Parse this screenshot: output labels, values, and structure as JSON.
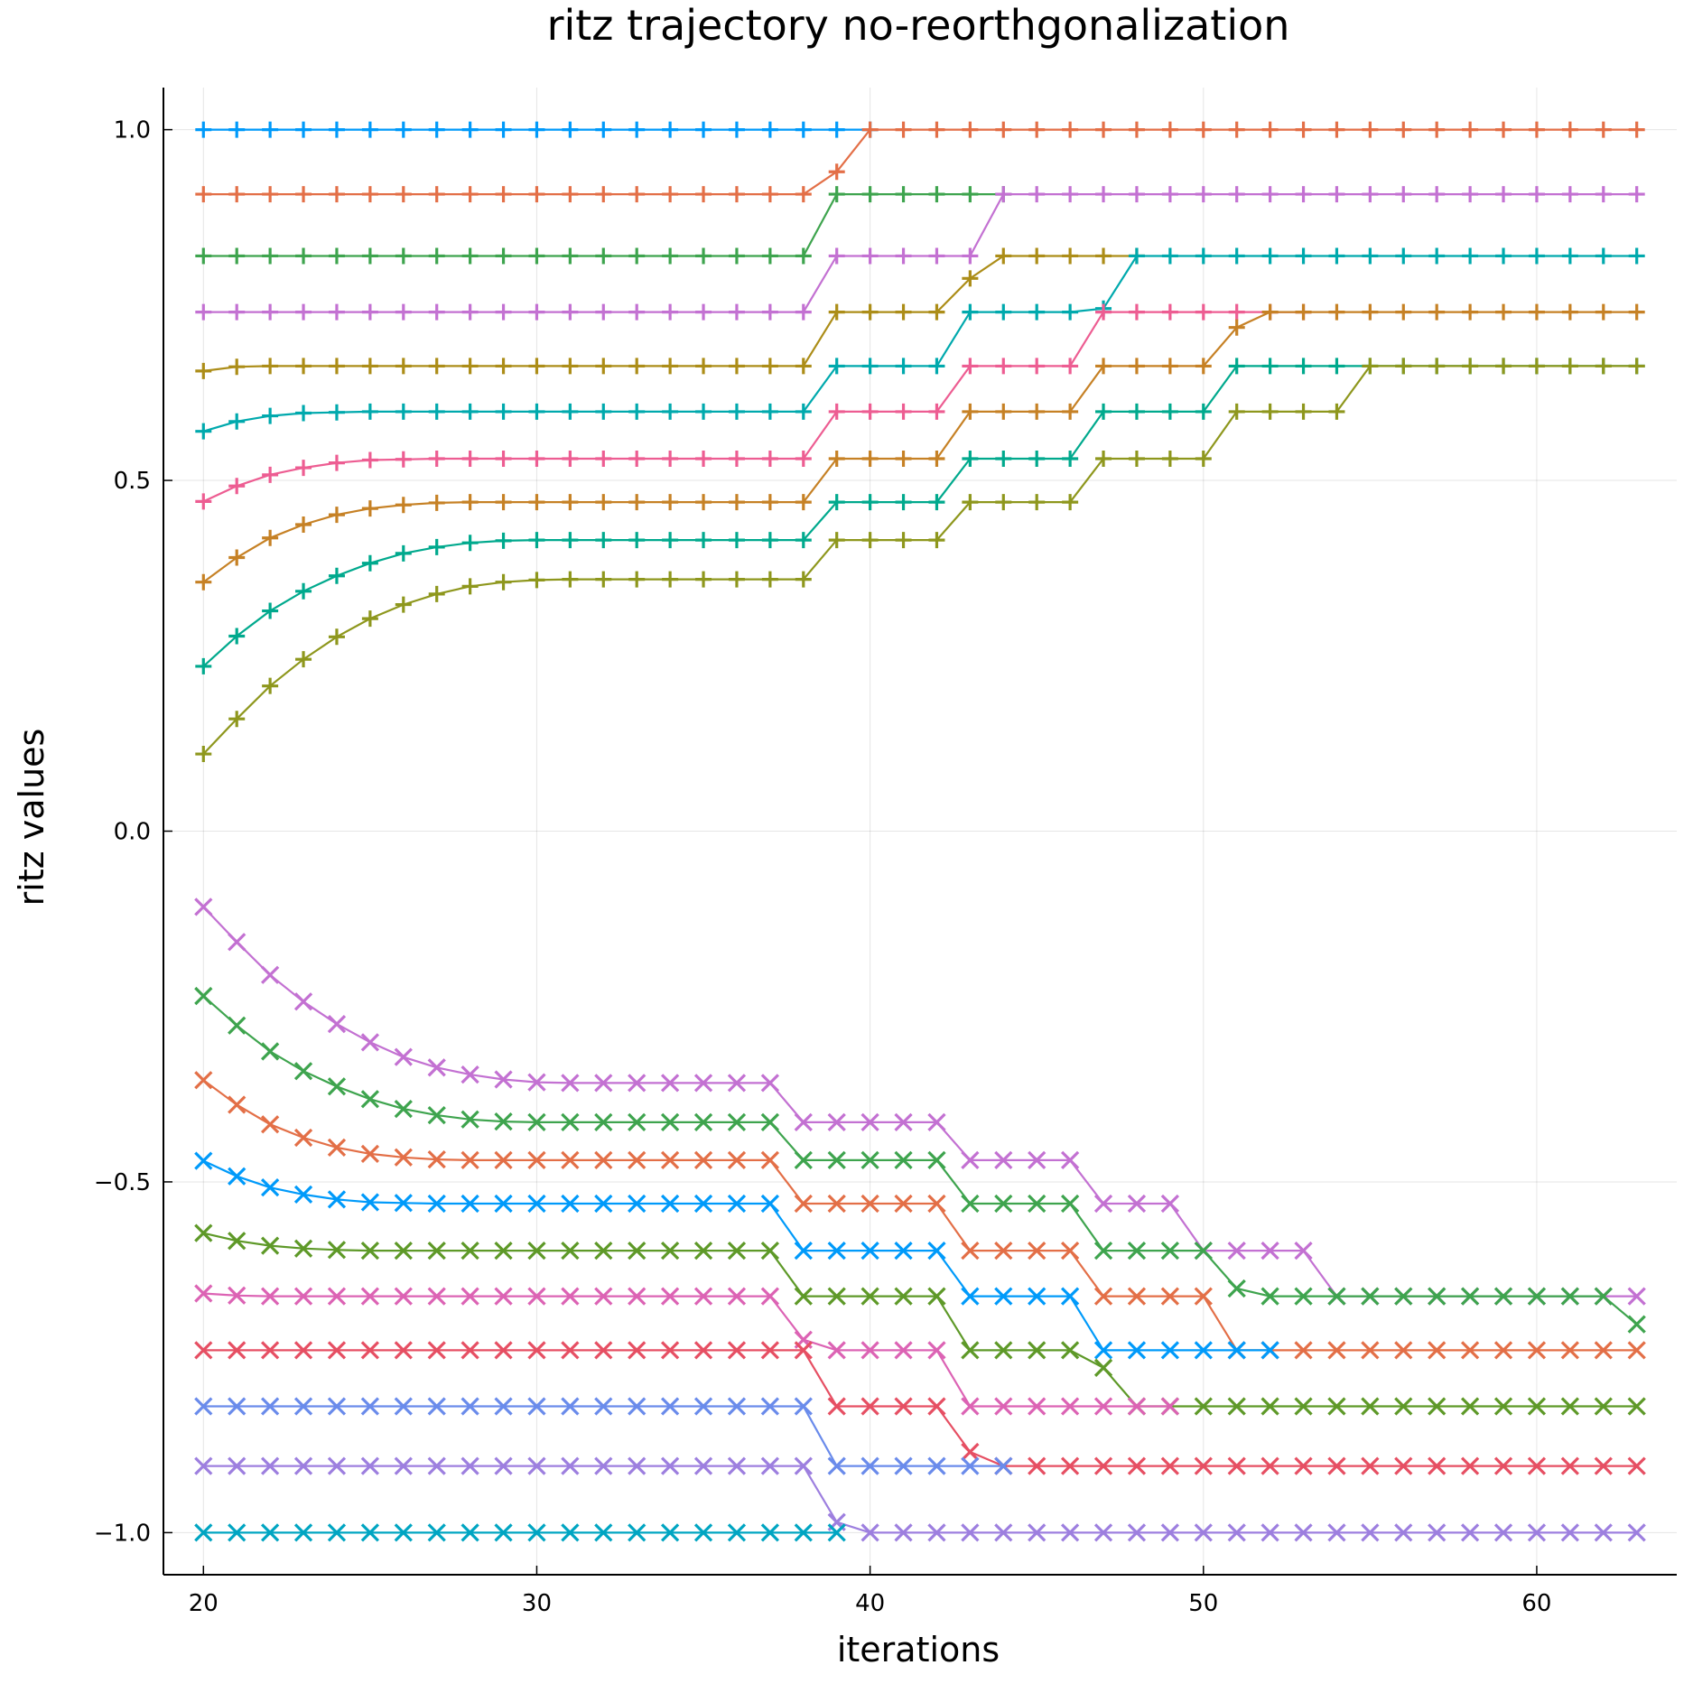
{
  "chart_data": {
    "type": "line",
    "title": "ritz trajectory no-reorthgonalization",
    "xlabel": "iterations",
    "ylabel": "ritz values",
    "xlim": [
      18.8,
      64.2
    ],
    "ylim": [
      -1.06,
      1.06
    ],
    "xticks": [
      20,
      30,
      40,
      50,
      60
    ],
    "xtick_labels": [
      "20",
      "30",
      "40",
      "50",
      "60"
    ],
    "yticks": [
      -1.0,
      -0.5,
      0.0,
      0.5,
      1.0
    ],
    "ytick_labels": [
      "−1.0",
      "−0.5",
      "0.0",
      "0.5",
      "1.0"
    ],
    "grid": true,
    "legend": "none",
    "x_start": 20,
    "series": [
      {
        "color": "#009AFA",
        "marker": "plus",
        "values": [
          1.0,
          1.0,
          1.0,
          1.0,
          1.0,
          1.0,
          1.0,
          1.0,
          1.0,
          1.0,
          1.0,
          1.0,
          1.0,
          1.0,
          1.0,
          1.0,
          1.0,
          1.0,
          1.0,
          1.0,
          1.0
        ]
      },
      {
        "color": "#E36F47",
        "marker": "plus",
        "values": [
          0.908,
          0.908,
          0.908,
          0.908,
          0.908,
          0.908,
          0.908,
          0.908,
          0.908,
          0.908,
          0.908,
          0.908,
          0.908,
          0.908,
          0.908,
          0.908,
          0.908,
          0.908,
          0.908,
          0.94,
          1.0,
          1.0,
          1.0,
          1.0,
          1.0,
          1.0,
          1.0,
          1.0,
          1.0,
          1.0,
          1.0,
          1.0,
          1.0,
          1.0,
          1.0,
          1.0,
          1.0,
          1.0,
          1.0,
          1.0,
          1.0,
          1.0,
          1.0,
          1.0
        ]
      },
      {
        "color": "#3EA44E",
        "marker": "plus",
        "values": [
          0.82,
          0.82,
          0.82,
          0.82,
          0.82,
          0.82,
          0.82,
          0.82,
          0.82,
          0.82,
          0.82,
          0.82,
          0.82,
          0.82,
          0.82,
          0.82,
          0.82,
          0.82,
          0.82,
          0.908,
          0.908,
          0.908,
          0.908,
          0.908,
          0.908
        ]
      },
      {
        "color": "#C371D2",
        "marker": "plus",
        "values": [
          0.74,
          0.74,
          0.74,
          0.74,
          0.74,
          0.74,
          0.74,
          0.74,
          0.74,
          0.74,
          0.74,
          0.74,
          0.74,
          0.74,
          0.74,
          0.74,
          0.74,
          0.74,
          0.74,
          0.82,
          0.82,
          0.82,
          0.82,
          0.82,
          0.908,
          0.908,
          0.908,
          0.908,
          0.908,
          0.908,
          0.908,
          0.908,
          0.908,
          0.908,
          0.908,
          0.908,
          0.908,
          0.908,
          0.908,
          0.908,
          0.908,
          0.908,
          0.908,
          0.908
        ]
      },
      {
        "color": "#AC8D18",
        "marker": "plus",
        "values": [
          0.656,
          0.662,
          0.663,
          0.663,
          0.663,
          0.663,
          0.663,
          0.663,
          0.663,
          0.663,
          0.663,
          0.663,
          0.663,
          0.663,
          0.663,
          0.663,
          0.663,
          0.663,
          0.663,
          0.74,
          0.74,
          0.74,
          0.74,
          0.788,
          0.82,
          0.82,
          0.82,
          0.82,
          0.82
        ]
      },
      {
        "color": "#00A9AD",
        "marker": "plus",
        "values": [
          0.57,
          0.584,
          0.592,
          0.596,
          0.597,
          0.598,
          0.598,
          0.598,
          0.598,
          0.598,
          0.598,
          0.598,
          0.598,
          0.598,
          0.598,
          0.598,
          0.598,
          0.598,
          0.598,
          0.663,
          0.663,
          0.663,
          0.663,
          0.74,
          0.74,
          0.74,
          0.74,
          0.745,
          0.82,
          0.82,
          0.82,
          0.82,
          0.82,
          0.82,
          0.82,
          0.82,
          0.82,
          0.82,
          0.82,
          0.82,
          0.82,
          0.82,
          0.82,
          0.82
        ]
      },
      {
        "color": "#ED5D92",
        "marker": "plus",
        "values": [
          0.47,
          0.492,
          0.508,
          0.518,
          0.525,
          0.529,
          0.53,
          0.531,
          0.531,
          0.531,
          0.531,
          0.531,
          0.531,
          0.531,
          0.531,
          0.531,
          0.531,
          0.531,
          0.531,
          0.598,
          0.598,
          0.598,
          0.598,
          0.663,
          0.663,
          0.663,
          0.663,
          0.74,
          0.74,
          0.74,
          0.74,
          0.74,
          0.74,
          0.74
        ]
      },
      {
        "color": "#C68125",
        "marker": "plus",
        "values": [
          0.355,
          0.39,
          0.418,
          0.437,
          0.451,
          0.46,
          0.465,
          0.468,
          0.469,
          0.469,
          0.469,
          0.469,
          0.469,
          0.469,
          0.469,
          0.469,
          0.469,
          0.469,
          0.469,
          0.531,
          0.531,
          0.531,
          0.531,
          0.598,
          0.598,
          0.598,
          0.598,
          0.663,
          0.663,
          0.663,
          0.663,
          0.718,
          0.74,
          0.74,
          0.74,
          0.74,
          0.74,
          0.74,
          0.74,
          0.74,
          0.74,
          0.74,
          0.74,
          0.74
        ]
      },
      {
        "color": "#00A98D",
        "marker": "plus",
        "values": [
          0.235,
          0.278,
          0.314,
          0.342,
          0.364,
          0.382,
          0.396,
          0.405,
          0.411,
          0.414,
          0.415,
          0.415,
          0.415,
          0.415,
          0.415,
          0.415,
          0.415,
          0.415,
          0.415,
          0.469,
          0.469,
          0.469,
          0.469,
          0.531,
          0.531,
          0.531,
          0.531,
          0.598,
          0.598,
          0.598,
          0.598,
          0.663,
          0.663,
          0.663,
          0.663,
          0.663,
          0.663,
          0.663,
          0.663,
          0.663,
          0.663,
          0.663,
          0.663,
          0.663
        ]
      },
      {
        "color": "#8E971D",
        "marker": "plus",
        "values": [
          0.11,
          0.16,
          0.207,
          0.245,
          0.277,
          0.303,
          0.323,
          0.338,
          0.349,
          0.355,
          0.358,
          0.359,
          0.359,
          0.359,
          0.359,
          0.359,
          0.359,
          0.359,
          0.359,
          0.415,
          0.415,
          0.415,
          0.415,
          0.469,
          0.469,
          0.469,
          0.469,
          0.531,
          0.531,
          0.531,
          0.531,
          0.598,
          0.598,
          0.598,
          0.598,
          0.663,
          0.663,
          0.663,
          0.663,
          0.663,
          0.663,
          0.663,
          0.663,
          0.663
        ]
      },
      {
        "color": "#C371D2",
        "marker": "cross",
        "values": [
          -0.108,
          -0.158,
          -0.205,
          -0.243,
          -0.275,
          -0.301,
          -0.322,
          -0.337,
          -0.347,
          -0.354,
          -0.358,
          -0.359,
          -0.359,
          -0.359,
          -0.359,
          -0.359,
          -0.359,
          -0.359,
          -0.415,
          -0.415,
          -0.415,
          -0.415,
          -0.415,
          -0.469,
          -0.469,
          -0.469,
          -0.469,
          -0.531,
          -0.531,
          -0.531,
          -0.598,
          -0.598,
          -0.598,
          -0.598,
          -0.663,
          -0.663,
          -0.663,
          -0.663,
          -0.663,
          -0.663,
          -0.663,
          -0.663,
          -0.663,
          -0.663
        ]
      },
      {
        "color": "#3EA44E",
        "marker": "cross",
        "values": [
          -0.235,
          -0.277,
          -0.314,
          -0.342,
          -0.364,
          -0.382,
          -0.396,
          -0.405,
          -0.411,
          -0.414,
          -0.415,
          -0.415,
          -0.415,
          -0.415,
          -0.415,
          -0.415,
          -0.415,
          -0.415,
          -0.469,
          -0.469,
          -0.469,
          -0.469,
          -0.469,
          -0.531,
          -0.531,
          -0.531,
          -0.531,
          -0.598,
          -0.598,
          -0.598,
          -0.598,
          -0.652,
          -0.663,
          -0.663,
          -0.663,
          -0.663,
          -0.663,
          -0.663,
          -0.663,
          -0.663,
          -0.663,
          -0.663,
          -0.663,
          -0.703
        ]
      },
      {
        "color": "#E36F47",
        "marker": "cross",
        "values": [
          -0.355,
          -0.39,
          -0.418,
          -0.437,
          -0.451,
          -0.46,
          -0.465,
          -0.468,
          -0.469,
          -0.469,
          -0.469,
          -0.469,
          -0.469,
          -0.469,
          -0.469,
          -0.469,
          -0.469,
          -0.469,
          -0.531,
          -0.531,
          -0.531,
          -0.531,
          -0.531,
          -0.598,
          -0.598,
          -0.598,
          -0.598,
          -0.663,
          -0.663,
          -0.663,
          -0.663,
          -0.74,
          -0.74,
          -0.74,
          -0.74,
          -0.74,
          -0.74,
          -0.74,
          -0.74,
          -0.74,
          -0.74,
          -0.74,
          -0.74,
          -0.74
        ]
      },
      {
        "color": "#009AFA",
        "marker": "cross",
        "values": [
          -0.47,
          -0.492,
          -0.508,
          -0.518,
          -0.525,
          -0.529,
          -0.53,
          -0.531,
          -0.531,
          -0.531,
          -0.531,
          -0.531,
          -0.531,
          -0.531,
          -0.531,
          -0.531,
          -0.531,
          -0.531,
          -0.598,
          -0.598,
          -0.598,
          -0.598,
          -0.598,
          -0.663,
          -0.663,
          -0.663,
          -0.663,
          -0.74,
          -0.74,
          -0.74,
          -0.74,
          -0.74,
          -0.74
        ]
      },
      {
        "color": "#5E9928",
        "marker": "cross",
        "values": [
          -0.573,
          -0.584,
          -0.591,
          -0.595,
          -0.597,
          -0.598,
          -0.598,
          -0.598,
          -0.598,
          -0.598,
          -0.598,
          -0.598,
          -0.598,
          -0.598,
          -0.598,
          -0.598,
          -0.598,
          -0.598,
          -0.663,
          -0.663,
          -0.663,
          -0.663,
          -0.663,
          -0.74,
          -0.74,
          -0.74,
          -0.74,
          -0.765,
          -0.82,
          -0.82,
          -0.82,
          -0.82,
          -0.82,
          -0.82,
          -0.82,
          -0.82,
          -0.82,
          -0.82,
          -0.82,
          -0.82,
          -0.82,
          -0.82,
          -0.82,
          -0.82
        ]
      },
      {
        "color": "#DC63B4",
        "marker": "cross",
        "values": [
          -0.659,
          -0.662,
          -0.663,
          -0.663,
          -0.663,
          -0.663,
          -0.663,
          -0.663,
          -0.663,
          -0.663,
          -0.663,
          -0.663,
          -0.663,
          -0.663,
          -0.663,
          -0.663,
          -0.663,
          -0.663,
          -0.725,
          -0.74,
          -0.74,
          -0.74,
          -0.74,
          -0.82,
          -0.82,
          -0.82,
          -0.82,
          -0.82,
          -0.82,
          -0.82
        ]
      },
      {
        "color": "#E64F63",
        "marker": "cross",
        "values": [
          -0.74,
          -0.74,
          -0.74,
          -0.74,
          -0.74,
          -0.74,
          -0.74,
          -0.74,
          -0.74,
          -0.74,
          -0.74,
          -0.74,
          -0.74,
          -0.74,
          -0.74,
          -0.74,
          -0.74,
          -0.74,
          -0.74,
          -0.82,
          -0.82,
          -0.82,
          -0.82,
          -0.885,
          -0.905,
          -0.905,
          -0.905,
          -0.905,
          -0.905,
          -0.905,
          -0.905,
          -0.905,
          -0.905,
          -0.905,
          -0.905,
          -0.905,
          -0.905,
          -0.905,
          -0.905,
          -0.905,
          -0.905,
          -0.905,
          -0.905,
          -0.905
        ]
      },
      {
        "color": "#6A8BEB",
        "marker": "cross",
        "values": [
          -0.82,
          -0.82,
          -0.82,
          -0.82,
          -0.82,
          -0.82,
          -0.82,
          -0.82,
          -0.82,
          -0.82,
          -0.82,
          -0.82,
          -0.82,
          -0.82,
          -0.82,
          -0.82,
          -0.82,
          -0.82,
          -0.82,
          -0.905,
          -0.905,
          -0.905,
          -0.905,
          -0.905,
          -0.905
        ]
      },
      {
        "color": "#9D7FDF",
        "marker": "cross",
        "values": [
          -0.905,
          -0.905,
          -0.905,
          -0.905,
          -0.905,
          -0.905,
          -0.905,
          -0.905,
          -0.905,
          -0.905,
          -0.905,
          -0.905,
          -0.905,
          -0.905,
          -0.905,
          -0.905,
          -0.905,
          -0.905,
          -0.905,
          -0.985,
          -1.0,
          -1.0,
          -1.0,
          -1.0,
          -1.0,
          -1.0,
          -1.0,
          -1.0,
          -1.0,
          -1.0,
          -1.0,
          -1.0,
          -1.0,
          -1.0,
          -1.0,
          -1.0,
          -1.0,
          -1.0,
          -1.0,
          -1.0,
          -1.0,
          -1.0,
          -1.0,
          -1.0
        ]
      },
      {
        "color": "#00A5C2",
        "marker": "cross",
        "values": [
          -1.0,
          -1.0,
          -1.0,
          -1.0,
          -1.0,
          -1.0,
          -1.0,
          -1.0,
          -1.0,
          -1.0,
          -1.0,
          -1.0,
          -1.0,
          -1.0,
          -1.0,
          -1.0,
          -1.0,
          -1.0,
          -1.0,
          -1.0
        ]
      }
    ]
  }
}
